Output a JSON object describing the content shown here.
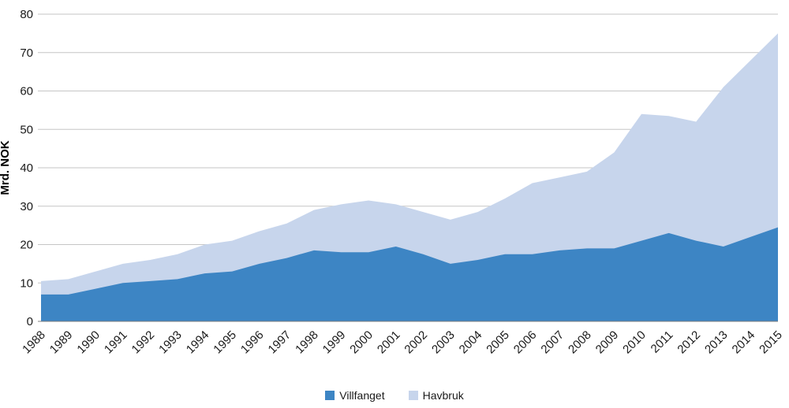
{
  "chart_data": {
    "type": "area",
    "stacked": true,
    "title": "",
    "xlabel": "",
    "ylabel": "Mrd. NOK",
    "ylim": [
      0,
      80
    ],
    "ytick_step": 10,
    "grid": true,
    "legend_position": "bottom",
    "categories": [
      "1988",
      "1989",
      "1990",
      "1991",
      "1992",
      "1993",
      "1994",
      "1995",
      "1996",
      "1997",
      "1998",
      "1999",
      "2000",
      "2001",
      "2002",
      "2003",
      "2004",
      "2005",
      "2006",
      "2007",
      "2008",
      "2009",
      "2010",
      "2011",
      "2012",
      "2013",
      "2014",
      "2015"
    ],
    "series": [
      {
        "name": "Villfanget",
        "color": "#3d85c4",
        "values": [
          7,
          7,
          8.5,
          10,
          10.5,
          11,
          12.5,
          13,
          15,
          16.5,
          18.5,
          18,
          18,
          19.5,
          17.5,
          15,
          16,
          17.5,
          17.5,
          18.5,
          19,
          19,
          21,
          23,
          21,
          19.5,
          22,
          24.5
        ]
      },
      {
        "name": "Havbruk",
        "color": "#c7d5ec",
        "values": [
          3.5,
          4,
          4.5,
          5,
          5.5,
          6.5,
          7.5,
          8,
          8.5,
          9,
          10.5,
          12.5,
          13.5,
          11,
          11,
          11.5,
          12.5,
          14.5,
          18.5,
          19,
          20,
          25,
          33,
          30.5,
          31,
          41.5,
          46,
          50.5
        ]
      }
    ],
    "colors": {
      "gridline": "#c6c6c6",
      "axis_line": "#7f7f7f",
      "tick_text": "#1a1a1a"
    }
  }
}
